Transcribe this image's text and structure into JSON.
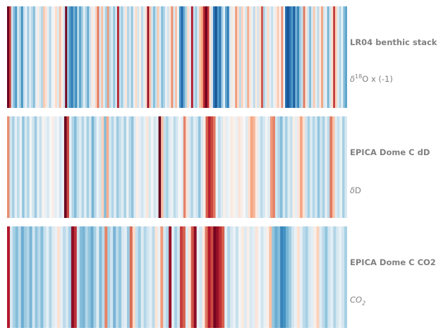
{
  "chart_data": [
    {
      "type": "heatmap",
      "title": "LR04 benthic stack",
      "unit": {
        "delta": "δ",
        "sup": "18",
        "rest": "O x (-1)"
      },
      "colormap": "RdBu_r",
      "vlim": [
        -3,
        3
      ],
      "values": [
        3.0,
        2.1,
        -0.6,
        -1.3,
        -1.7,
        -0.5,
        -1.0,
        -1.8,
        -0.7,
        -0.2,
        -1.1,
        -0.4,
        -0.8,
        -1.3,
        -0.3,
        0.2,
        -0.5,
        -0.9,
        0.8,
        0.4,
        -0.3,
        -0.9,
        -0.2,
        0.1,
        0.6,
        -0.4,
        0.9,
        0.2,
        -0.6,
        2.9,
        -1.2,
        -1.7,
        -2.1,
        -1.4,
        -1.9,
        -0.8,
        -1.6,
        -1.1,
        -0.3,
        -0.9,
        -1.5,
        -0.6,
        0.3,
        -0.2,
        0.7,
        1.6,
        -0.5,
        0.9,
        -0.4,
        -1.0,
        1.3,
        -0.8,
        -0.4,
        -1.2,
        -0.5,
        2.3,
        -0.7,
        -1.1,
        -0.4,
        0.4,
        -0.9,
        -0.5,
        -1.2,
        -0.2,
        0.6,
        -0.6,
        0.2,
        -0.8,
        -0.3,
        0.5,
        2.6,
        0.9,
        -0.6,
        -1.3,
        -0.7,
        0.8,
        -0.4,
        -1.3,
        -0.9,
        -0.2,
        -0.6,
        0.4,
        1.4,
        -0.5,
        0.9,
        -0.1,
        -1.7,
        -2.4,
        -1.5,
        -0.9,
        0.6,
        -0.3,
        2.4,
        -0.7,
        -1.1,
        -0.4,
        0.9,
        1.2,
        2.3,
        3.0,
        2.2,
        0.5,
        -0.6,
        -2.2,
        -2.6,
        -1.7,
        -2.2,
        -1.1,
        -0.3,
        -1.6,
        -2.1,
        -0.5,
        0.3,
        -0.2,
        1.3,
        0.6,
        -0.8,
        0.7,
        0.2,
        -0.6,
        1.1,
        0.4,
        -0.2,
        -0.8,
        0.3,
        -0.6,
        0.5,
        1.9,
        -0.9,
        -0.4,
        0.6,
        -0.3,
        -0.7,
        -0.2,
        0.3,
        0.8,
        0.1,
        1.4,
        -0.1,
        -2.4,
        -2.6,
        -2.2,
        -1.7,
        -2.5,
        -1.4,
        -2.0,
        -1.1,
        -0.7,
        1.6,
        0.4,
        -0.6,
        -1.3,
        -0.5,
        0.8,
        -0.3,
        -0.8,
        0.3,
        1.2,
        -0.5,
        -0.2,
        -1.4,
        -0.6,
        0.5,
        2.1,
        0.7,
        -0.4,
        -0.9,
        -0.2,
        -1.3,
        -1.6
      ]
    },
    {
      "type": "heatmap",
      "title": "EPICA Dome C dD",
      "unit": {
        "delta": "δ",
        "rest": "D"
      },
      "colormap": "RdBu_r",
      "vlim": [
        -3,
        3
      ],
      "values": [
        1.4,
        -0.6,
        -1.0,
        -0.3,
        -0.8,
        -0.2,
        -1.2,
        -0.5,
        -0.9,
        -0.1,
        -0.6,
        -1.1,
        -0.3,
        -0.7,
        0.1,
        -0.2,
        -0.5,
        0.0,
        0.2,
        -0.3,
        -0.1,
        -0.6,
        -0.2,
        3.0,
        2.0,
        -0.3,
        -0.9,
        -1.3,
        -0.7,
        -0.4,
        -0.9,
        -0.3,
        -1.0,
        -0.5,
        -1.4,
        -0.8,
        -0.2,
        -0.6,
        0.7,
        -1.3,
        1.1,
        -0.5,
        -0.9,
        -0.3,
        -1.1,
        -0.7,
        -0.4,
        -1.0,
        -0.2,
        -0.8,
        -1.2,
        -0.4,
        0.2,
        -0.3,
        -0.6,
        -0.2,
        0.4,
        -0.5,
        -0.1,
        -0.6,
        -0.3,
        3.0,
        0.9,
        -0.7,
        -1.0,
        -0.4,
        -0.2,
        -0.8,
        -0.5,
        0.0,
        -0.3,
        1.5,
        0.4,
        -0.5,
        -0.9,
        -0.3,
        -0.6,
        -1.2,
        -0.4,
        0.2,
        1.8,
        2.3,
        2.0,
        1.6,
        -0.2,
        -0.8,
        -0.4,
        0.2,
        -0.3,
        -0.1,
        0.3,
        0.1,
        -0.2,
        0.4,
        0.2,
        0.0,
        -0.4,
        0.5,
        1.2,
        1.0,
        0.3,
        -0.3,
        -0.8,
        -0.5,
        -0.1,
        -0.4,
        1.3,
        1.5,
        -0.6,
        -0.9,
        -1.3,
        -0.5,
        -1.0,
        -0.4,
        -0.7,
        0.2,
        -0.3,
        0.4,
        1.2,
        0.5,
        -0.6,
        -1.0,
        -0.4,
        -0.9,
        -0.5,
        -1.2,
        -0.6,
        -1.0,
        -0.3,
        -0.8,
        1.6,
        0.9,
        -0.4,
        -0.7,
        -0.2,
        -1.0,
        -0.5
      ]
    },
    {
      "type": "heatmap",
      "title": "EPICA Dome C CO2",
      "unit": {
        "sym": "CO",
        "sub": "2"
      },
      "colormap": "RdBu_r",
      "vlim": [
        -3,
        3
      ],
      "values": [
        2.4,
        -0.5,
        -1.0,
        -1.3,
        -0.8,
        -1.5,
        -1.1,
        -0.9,
        -1.4,
        -0.6,
        -1.2,
        -0.8,
        -1.3,
        -0.7,
        -0.3,
        -0.9,
        -0.4,
        -0.2,
        0.5,
        -0.3,
        -0.8,
        -0.5,
        -1.0,
        2.7,
        2.2,
        -0.6,
        -1.3,
        -1.4,
        -0.9,
        -1.2,
        -1.5,
        -1.0,
        -0.4,
        -1.3,
        -0.8,
        1.5,
        -1.0,
        -0.6,
        -1.4,
        -0.8,
        -1.2,
        -0.5,
        -0.3,
        -1.1,
        1.7,
        0.6,
        -0.7,
        -1.1,
        -0.4,
        -0.9,
        -0.6,
        -0.3,
        -0.8,
        0.4,
        -0.2,
        1.3,
        -0.5,
        -0.9,
        2.6,
        -0.3,
        -1.0,
        -0.6,
        2.1,
        1.8,
        -0.4,
        0.5,
        1.9,
        2.7,
        -0.2,
        -0.6,
        0.3,
        1.6,
        2.4,
        2.0,
        2.9,
        2.6,
        2.2,
        1.8,
        -0.3,
        -0.9,
        -0.5,
        -0.2,
        -0.7,
        -0.1,
        0.3,
        -0.4,
        0.2,
        -0.5,
        -0.3,
        0.4,
        -0.1,
        -0.6,
        -0.2,
        0.2,
        0.9,
        -1.2,
        -1.5,
        -1.3,
        -2.0,
        -1.8,
        -1.4,
        -1.1,
        -0.6,
        -0.2,
        0.5,
        -0.3,
        -0.8,
        -1.0,
        -0.5,
        -0.3,
        0.2,
        0.7,
        -0.4,
        -0.8,
        -1.2,
        -0.6,
        -0.3,
        -0.9,
        -0.5,
        -0.2,
        -0.6,
        -1.0
      ]
    }
  ]
}
